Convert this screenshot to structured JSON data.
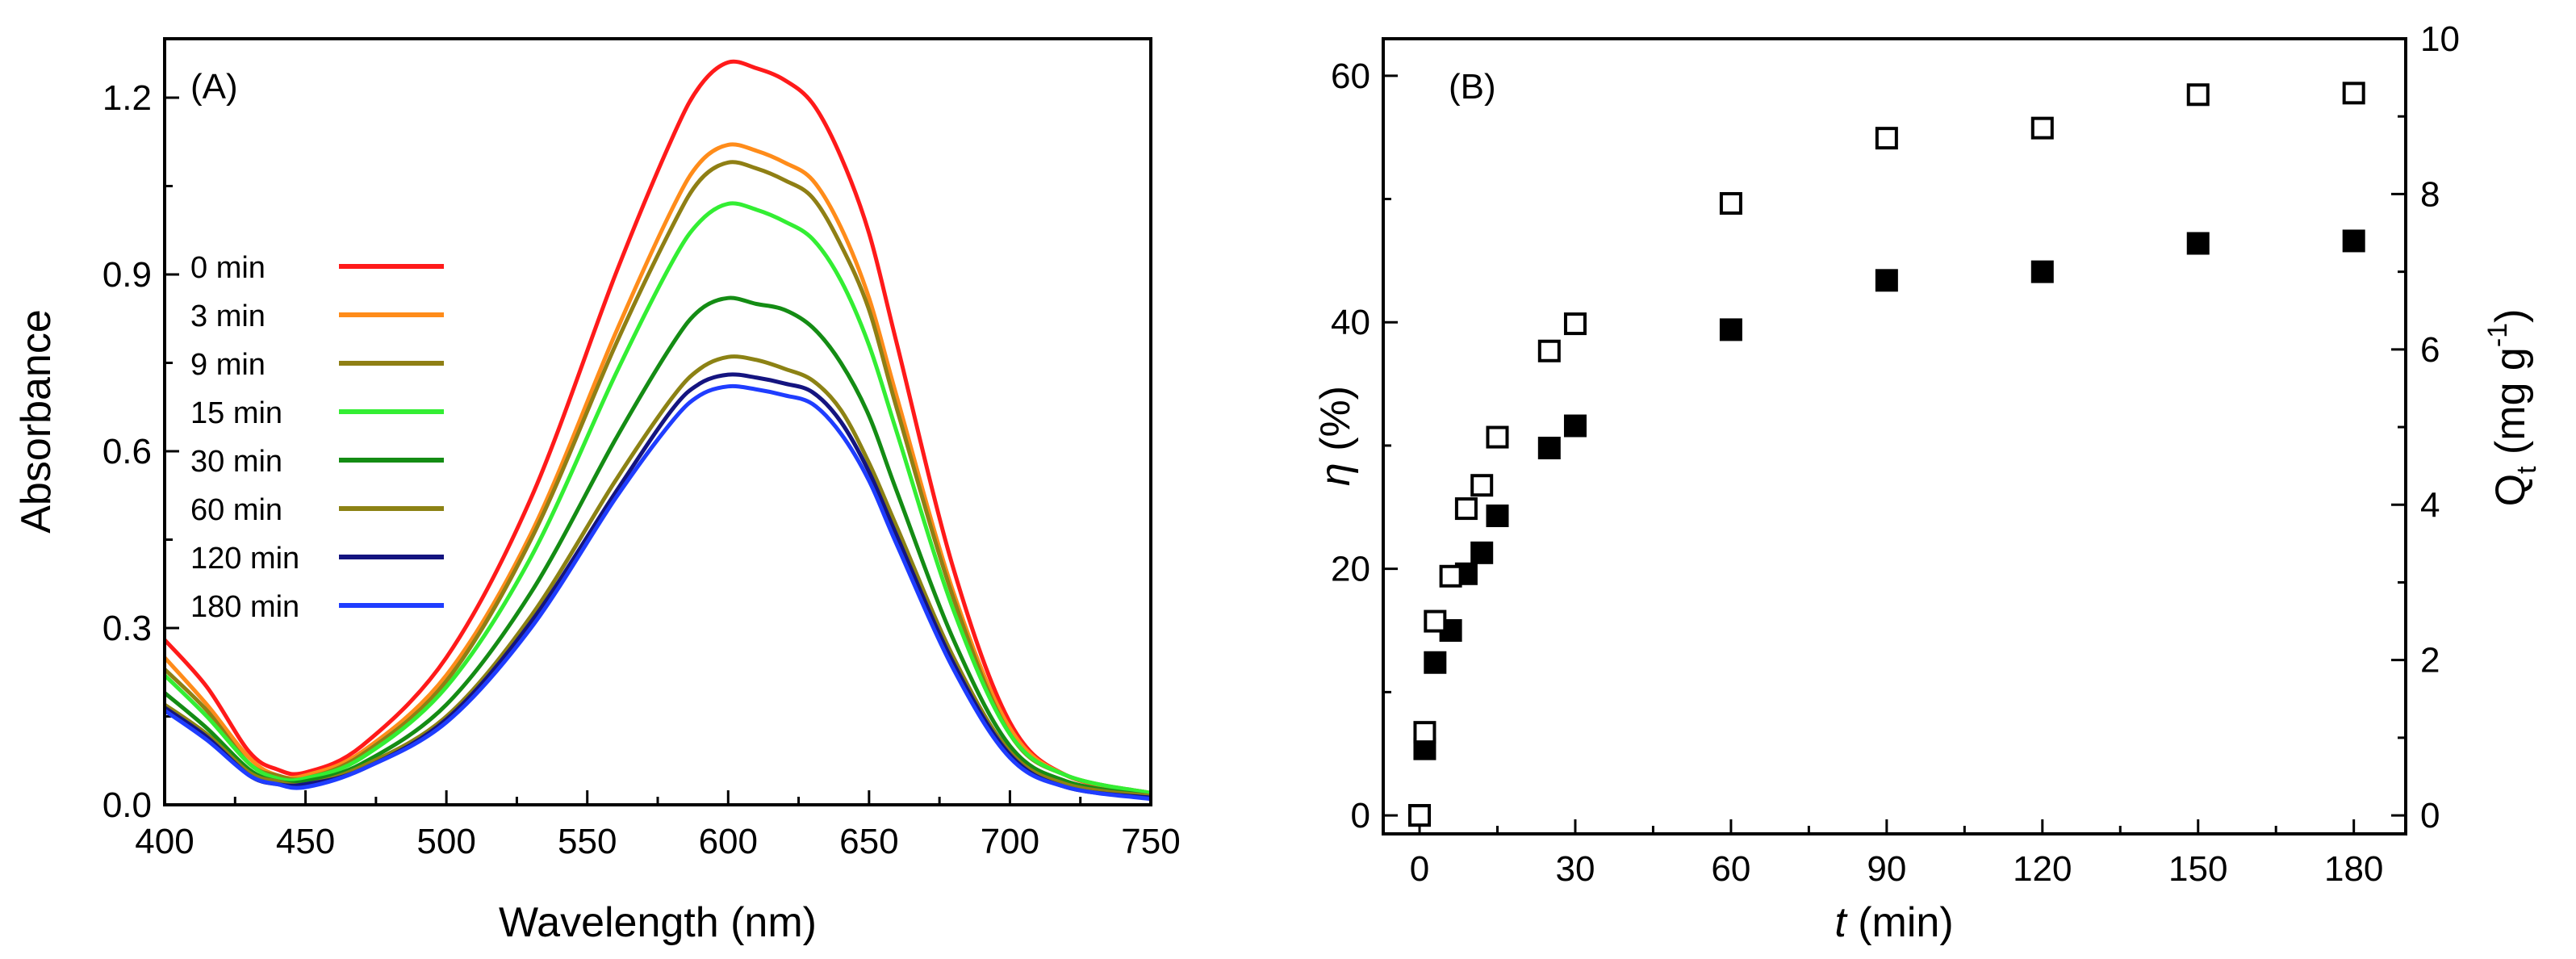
{
  "chart_data": [
    {
      "type": "line",
      "panel_label": "(A)",
      "xlabel": "Wavelength (nm)",
      "ylabel": "Absorbance",
      "xlim": [
        400,
        750
      ],
      "ylim": [
        0,
        1.3
      ],
      "xticks": [
        400,
        450,
        500,
        550,
        600,
        650,
        700,
        750
      ],
      "xtick_labels": [
        "400",
        "450",
        "500",
        "550",
        "600",
        "650",
        "700",
        "750"
      ],
      "yticks": [
        0,
        0.3,
        0.6,
        0.9,
        1.2
      ],
      "ytick_labels": [
        "0.0",
        "0.3",
        "0.6",
        "0.9",
        "1.2"
      ],
      "legend_position": "left",
      "series": [
        {
          "name": "0 min",
          "color": "#ff1a1a",
          "x": [
            400,
            415,
            430,
            440,
            450,
            470,
            500,
            530,
            560,
            580,
            590,
            600,
            610,
            620,
            630,
            640,
            650,
            660,
            680,
            700,
            720,
            750
          ],
          "y": [
            0.28,
            0.2,
            0.09,
            0.06,
            0.055,
            0.1,
            0.25,
            0.52,
            0.9,
            1.13,
            1.22,
            1.26,
            1.25,
            1.23,
            1.19,
            1.1,
            0.97,
            0.78,
            0.4,
            0.14,
            0.05,
            0.02
          ]
        },
        {
          "name": "3 min",
          "color": "#ff8c1a",
          "x": [
            400,
            415,
            430,
            440,
            450,
            470,
            500,
            530,
            560,
            580,
            590,
            600,
            610,
            620,
            630,
            640,
            650,
            660,
            680,
            700,
            720,
            750
          ],
          "y": [
            0.25,
            0.17,
            0.08,
            0.05,
            0.05,
            0.09,
            0.22,
            0.46,
            0.8,
            1.01,
            1.09,
            1.12,
            1.11,
            1.09,
            1.06,
            0.98,
            0.86,
            0.69,
            0.36,
            0.13,
            0.05,
            0.02
          ]
        },
        {
          "name": "9 min",
          "color": "#8f7f14",
          "x": [
            400,
            415,
            430,
            440,
            450,
            470,
            500,
            530,
            560,
            580,
            590,
            600,
            610,
            620,
            630,
            640,
            650,
            660,
            680,
            700,
            720,
            750
          ],
          "y": [
            0.23,
            0.16,
            0.07,
            0.05,
            0.045,
            0.085,
            0.21,
            0.45,
            0.78,
            0.98,
            1.06,
            1.09,
            1.08,
            1.06,
            1.03,
            0.95,
            0.84,
            0.67,
            0.35,
            0.12,
            0.05,
            0.02
          ]
        },
        {
          "name": "15 min",
          "color": "#33ee33",
          "x": [
            400,
            415,
            430,
            440,
            450,
            470,
            500,
            530,
            560,
            580,
            590,
            600,
            610,
            620,
            630,
            640,
            650,
            660,
            680,
            700,
            720,
            750
          ],
          "y": [
            0.22,
            0.15,
            0.07,
            0.045,
            0.045,
            0.08,
            0.2,
            0.42,
            0.73,
            0.92,
            0.99,
            1.02,
            1.01,
            0.99,
            0.96,
            0.89,
            0.78,
            0.63,
            0.33,
            0.12,
            0.05,
            0.02
          ]
        },
        {
          "name": "30 min",
          "color": "#148c14",
          "x": [
            400,
            415,
            430,
            440,
            450,
            470,
            500,
            530,
            560,
            580,
            590,
            600,
            610,
            620,
            630,
            640,
            650,
            660,
            680,
            700,
            720,
            750
          ],
          "y": [
            0.19,
            0.13,
            0.06,
            0.04,
            0.04,
            0.07,
            0.17,
            0.36,
            0.62,
            0.78,
            0.84,
            0.86,
            0.85,
            0.84,
            0.81,
            0.75,
            0.66,
            0.53,
            0.28,
            0.1,
            0.04,
            0.015
          ]
        },
        {
          "name": "60 min",
          "color": "#8c8214",
          "x": [
            400,
            415,
            430,
            440,
            450,
            470,
            500,
            530,
            560,
            580,
            590,
            600,
            610,
            620,
            630,
            640,
            650,
            660,
            680,
            700,
            720,
            750
          ],
          "y": [
            0.17,
            0.12,
            0.055,
            0.04,
            0.035,
            0.065,
            0.15,
            0.32,
            0.55,
            0.69,
            0.74,
            0.76,
            0.755,
            0.74,
            0.72,
            0.67,
            0.58,
            0.47,
            0.25,
            0.09,
            0.035,
            0.015
          ]
        },
        {
          "name": "120 min",
          "color": "#141480",
          "x": [
            400,
            415,
            430,
            440,
            450,
            470,
            500,
            530,
            560,
            580,
            590,
            600,
            610,
            620,
            630,
            640,
            650,
            660,
            680,
            700,
            720,
            750
          ],
          "y": [
            0.165,
            0.115,
            0.05,
            0.035,
            0.035,
            0.06,
            0.145,
            0.31,
            0.53,
            0.67,
            0.715,
            0.73,
            0.725,
            0.715,
            0.7,
            0.65,
            0.565,
            0.455,
            0.24,
            0.085,
            0.03,
            0.012
          ]
        },
        {
          "name": "180 min",
          "color": "#1f3dff",
          "x": [
            400,
            415,
            430,
            440,
            450,
            470,
            500,
            530,
            560,
            580,
            590,
            600,
            610,
            620,
            630,
            640,
            650,
            660,
            680,
            700,
            720,
            750
          ],
          "y": [
            0.16,
            0.11,
            0.05,
            0.035,
            0.03,
            0.06,
            0.14,
            0.3,
            0.52,
            0.65,
            0.695,
            0.71,
            0.705,
            0.695,
            0.68,
            0.63,
            0.55,
            0.44,
            0.23,
            0.08,
            0.03,
            0.01
          ]
        }
      ]
    },
    {
      "type": "scatter",
      "panel_label": "(B)",
      "xlabel_italic": "t",
      "xlabel_rest": " (min)",
      "ylabel_italic": "η",
      "ylabel_rest": " (%)",
      "y2label_main": "Q",
      "y2label_sub": "t",
      "y2label_unit": " (mg g",
      "y2label_sup": "-1",
      "y2label_close": ")",
      "xlim": [
        -7,
        190
      ],
      "ylim": [
        -1.5,
        63
      ],
      "y2lim": [
        -0.238,
        10
      ],
      "xticks": [
        0,
        30,
        60,
        90,
        120,
        150,
        180
      ],
      "xtick_labels": [
        "0",
        "30",
        "60",
        "90",
        "120",
        "150",
        "180"
      ],
      "yticks": [
        0,
        20,
        40,
        60
      ],
      "ytick_labels": [
        "0",
        "20",
        "40",
        "60"
      ],
      "y2ticks": [
        0,
        2,
        4,
        6,
        8,
        10
      ],
      "y2tick_labels": [
        "0",
        "2",
        "4",
        "6",
        "8",
        "10"
      ],
      "series": [
        {
          "name": "η (%)",
          "marker": "filled-square",
          "axis": "left",
          "x": [
            0,
            1,
            3,
            6,
            9,
            12,
            15,
            25,
            30,
            60,
            90,
            120,
            150,
            180
          ],
          "y": [
            0,
            5.4,
            12.4,
            15.0,
            19.6,
            21.3,
            24.3,
            29.8,
            31.6,
            39.4,
            43.4,
            44.1,
            46.4,
            46.6
          ]
        },
        {
          "name": "Qt (mg g-1)",
          "marker": "open-square",
          "axis": "right",
          "x": [
            0,
            1,
            3,
            6,
            9,
            12,
            15,
            25,
            30,
            60,
            90,
            120,
            150,
            180
          ],
          "y": [
            0,
            1.07,
            2.5,
            3.08,
            3.95,
            4.25,
            4.87,
            5.98,
            6.33,
            7.88,
            8.72,
            8.85,
            9.28,
            9.3
          ]
        }
      ]
    }
  ]
}
